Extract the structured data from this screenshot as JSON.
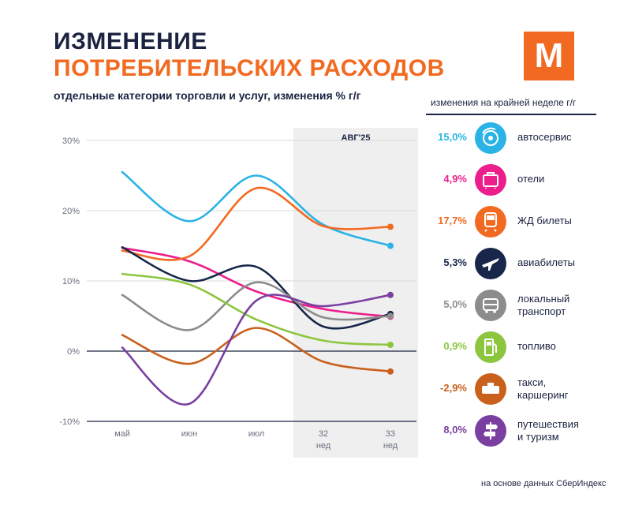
{
  "header": {
    "title_line1": "ИЗМЕНЕНИЕ",
    "title_line2": "ПОТРЕБИТЕЛЬСКИХ РАСХОДОВ",
    "subtitle": "отдельные категории торговли и услуг, изменения % г/г",
    "logo_letter": "М"
  },
  "legend": {
    "heading": "изменения на крайней неделе г/г",
    "items": [
      {
        "value": "15,0%",
        "label_lines": [
          "автосервис"
        ],
        "color": "#2bb3e6",
        "icon": "car-service-icon"
      },
      {
        "value": "4,9%",
        "label_lines": [
          "отели"
        ],
        "color": "#ec1e8c",
        "icon": "suitcase-icon"
      },
      {
        "value": "17,7%",
        "label_lines": [
          "ЖД билеты"
        ],
        "color": "#f26a21",
        "icon": "train-icon"
      },
      {
        "value": "5,3%",
        "label_lines": [
          "авиабилеты"
        ],
        "color": "#17264a",
        "icon": "airplane-icon"
      },
      {
        "value": "5,0%",
        "label_lines": [
          "локальный",
          "транспорт"
        ],
        "color": "#8c8c8c",
        "icon": "bus-icon"
      },
      {
        "value": "0,9%",
        "label_lines": [
          "топливо"
        ],
        "color": "#8cc63f",
        "icon": "fuel-pump-icon"
      },
      {
        "value": "-2,9%",
        "label_lines": [
          "такси,",
          "каршеринг"
        ],
        "color": "#c9601b",
        "icon": "taxi-icon"
      },
      {
        "value": "8,0%",
        "label_lines": [
          "путешествия",
          "и туризм"
        ],
        "color": "#7a3fa0",
        "icon": "signpost-icon"
      }
    ]
  },
  "chart_data": {
    "type": "line",
    "x": [
      "май",
      "июн",
      "июл",
      "32 нед",
      "33 нед"
    ],
    "x_tick_lines": [
      [
        "май"
      ],
      [
        "июн"
      ],
      [
        "июл"
      ],
      [
        "32",
        "нед"
      ],
      [
        "33",
        "нед"
      ]
    ],
    "ylim": [
      -10,
      30
    ],
    "yticks": [
      30,
      20,
      10,
      0,
      -10
    ],
    "ytick_labels": [
      "30%",
      "20%",
      "10%",
      "0%",
      "-10%"
    ],
    "highlight_label": "АВГ'25",
    "series": [
      {
        "name": "автосервис",
        "color": "#2bb3e6",
        "values": [
          25.5,
          18.5,
          25.0,
          18.0,
          15.0
        ],
        "marker": true
      },
      {
        "name": "отели",
        "color": "#ec1e8c",
        "values": [
          14.7,
          12.8,
          8.5,
          6.0,
          4.9
        ],
        "marker": true
      },
      {
        "name": "ЖД билеты",
        "color": "#f26a21",
        "values": [
          14.3,
          13.5,
          23.2,
          17.8,
          17.7
        ],
        "marker": true
      },
      {
        "name": "авиабилеты",
        "color": "#17264a",
        "values": [
          14.8,
          10.0,
          12.0,
          3.5,
          5.3
        ],
        "marker": true
      },
      {
        "name": "локальный транспорт",
        "color": "#8c8c8c",
        "values": [
          8.0,
          3.0,
          9.8,
          4.8,
          5.0
        ],
        "marker": true
      },
      {
        "name": "топливо",
        "color": "#8cc63f",
        "values": [
          11.0,
          9.5,
          4.5,
          1.5,
          0.9
        ],
        "marker": true
      },
      {
        "name": "такси, каршеринг",
        "color": "#c9601b",
        "values": [
          2.3,
          -1.8,
          3.3,
          -1.5,
          -2.9
        ],
        "marker": true
      },
      {
        "name": "путешествия и туризм",
        "color": "#7a3fa0",
        "values": [
          0.5,
          -7.5,
          7.2,
          6.4,
          8.0
        ],
        "marker": true
      }
    ]
  },
  "footer": {
    "source": "на основе данных СберИндекс"
  }
}
